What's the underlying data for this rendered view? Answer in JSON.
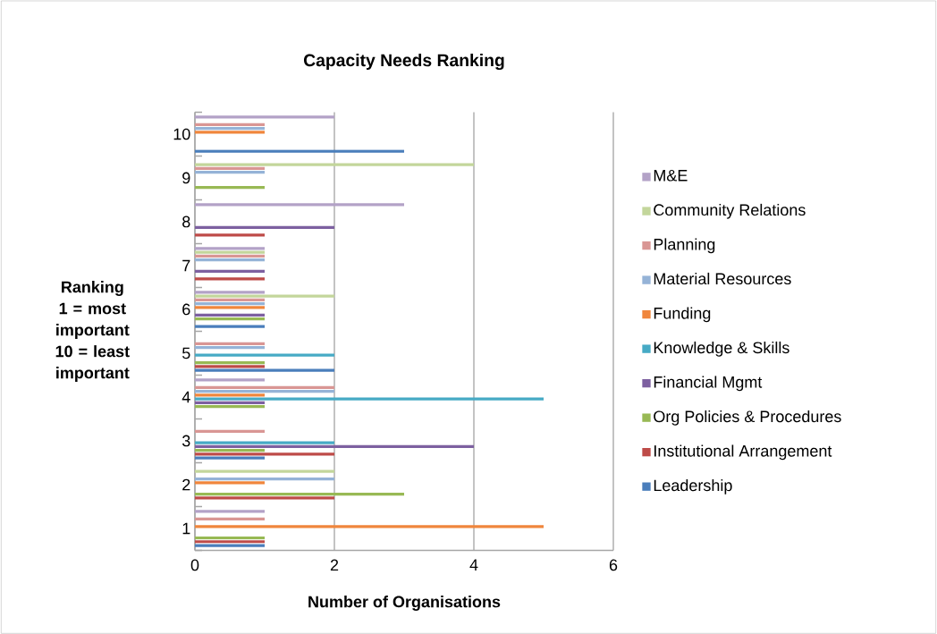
{
  "chart_data": {
    "type": "bar",
    "orientation": "horizontal",
    "title": "Capacity Needs Ranking",
    "xlabel": "Number of Organisations",
    "ylabel": "Ranking 1 = most important 10 = least important",
    "categories": [
      "10",
      "9",
      "8",
      "7",
      "6",
      "5",
      "4",
      "3",
      "2",
      "1"
    ],
    "series": [
      {
        "name": "Leadership",
        "color": "#4a7ebb",
        "values": [
          3,
          0,
          0,
          0,
          1,
          2,
          0,
          1,
          0,
          1
        ]
      },
      {
        "name": "Institutional Arrangement",
        "color": "#be4b48",
        "values": [
          0,
          0,
          1,
          1,
          0,
          1,
          0,
          2,
          2,
          1
        ]
      },
      {
        "name": "Org Policies & Procedures",
        "color": "#98b954",
        "values": [
          0,
          1,
          0,
          0,
          1,
          1,
          1,
          1,
          3,
          1
        ]
      },
      {
        "name": "Financial Mgmt",
        "color": "#7d60a0",
        "values": [
          0,
          0,
          2,
          1,
          1,
          0,
          1,
          4,
          0,
          0
        ]
      },
      {
        "name": "Knowledge & Skills",
        "color": "#46aac5",
        "values": [
          0,
          0,
          0,
          0,
          0,
          2,
          5,
          2,
          0,
          0
        ]
      },
      {
        "name": "Funding",
        "color": "#f0863c",
        "values": [
          1,
          0,
          0,
          0,
          1,
          0,
          1,
          0,
          1,
          5
        ]
      },
      {
        "name": "Material Resources",
        "color": "#95b3d7",
        "values": [
          1,
          1,
          0,
          1,
          1,
          1,
          2,
          0,
          2,
          0
        ]
      },
      {
        "name": "Planning",
        "color": "#d99694",
        "values": [
          1,
          1,
          0,
          1,
          1,
          1,
          2,
          1,
          0,
          1
        ]
      },
      {
        "name": "Community Relations",
        "color": "#c3d69b",
        "values": [
          0,
          4,
          0,
          1,
          2,
          0,
          0,
          0,
          2,
          0
        ]
      },
      {
        "name": "M&E",
        "color": "#b3a2c7",
        "values": [
          2,
          0,
          3,
          1,
          1,
          0,
          1,
          0,
          0,
          1
        ]
      }
    ],
    "xlim": [
      0,
      6
    ],
    "xticks": [
      0,
      2,
      4,
      6
    ],
    "grid": "x",
    "legend": "right"
  }
}
